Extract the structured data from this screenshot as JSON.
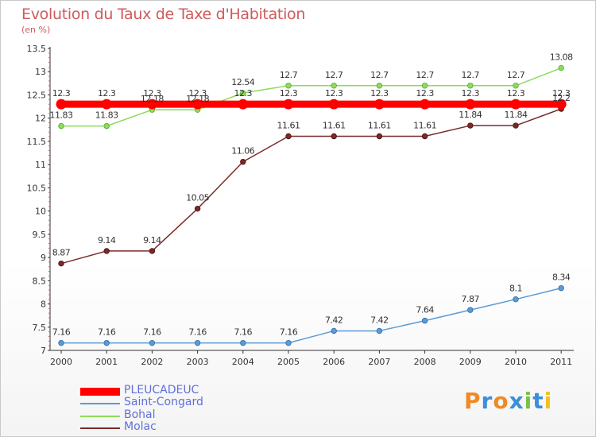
{
  "title": "Evolution du Taux de Taxe d'Habitation",
  "subtitle": "(en %)",
  "logo_text": "Proxiti",
  "chart_data": {
    "type": "line",
    "title": "Evolution du Taux de Taxe d'Habitation",
    "ylabel": "(en %)",
    "xlabel": "",
    "x": [
      "2000",
      "2001",
      "2002",
      "2003",
      "2004",
      "2005",
      "2006",
      "2007",
      "2008",
      "2009",
      "2010",
      "2011"
    ],
    "ylim": [
      7,
      13.5
    ],
    "yticks": [
      "7",
      "7.5",
      "8",
      "8.5",
      "9",
      "9.5",
      "10",
      "10.5",
      "11",
      "11.5",
      "12",
      "12.5",
      "13",
      "13.5"
    ],
    "legend_position": "bottom-left",
    "grid": false,
    "series": [
      {
        "name": "PLEUCADEUC",
        "color": "#ff0000",
        "values": [
          12.3,
          12.3,
          12.3,
          12.3,
          12.3,
          12.3,
          12.3,
          12.3,
          12.3,
          12.3,
          12.3,
          12.3
        ],
        "labels": [
          "12.3",
          "12.3",
          "12.3",
          "12.3",
          "12.3",
          "12.3",
          "12.3",
          "12.3",
          "12.3",
          "12.3",
          "12.3",
          "12.3"
        ]
      },
      {
        "name": "Saint-Congard",
        "color": "#5b9bd5",
        "values": [
          7.16,
          7.16,
          7.16,
          7.16,
          7.16,
          7.16,
          7.42,
          7.42,
          7.64,
          7.87,
          8.1,
          8.34
        ],
        "labels": [
          "7.16",
          "7.16",
          "7.16",
          "7.16",
          "7.16",
          "7.16",
          "7.42",
          "7.42",
          "7.64",
          "7.87",
          "8.1",
          "8.34"
        ]
      },
      {
        "name": "Bohal",
        "color": "#8ddc5a",
        "values": [
          11.83,
          11.83,
          12.18,
          12.18,
          12.54,
          12.7,
          12.7,
          12.7,
          12.7,
          12.7,
          12.7,
          13.08
        ],
        "labels": [
          "11.83",
          "11.83",
          "12.18",
          "12.18",
          "12.54",
          "12.7",
          "12.7",
          "12.7",
          "12.7",
          "12.7",
          "12.7",
          "13.08"
        ]
      },
      {
        "name": "Molac",
        "color": "#7a2a2a",
        "values": [
          8.87,
          9.14,
          9.14,
          10.05,
          11.06,
          11.61,
          11.61,
          11.61,
          11.61,
          11.84,
          11.84,
          12.2
        ],
        "labels": [
          "8.87",
          "9.14",
          "9.14",
          "10.05",
          "11.06",
          "11.61",
          "11.61",
          "11.61",
          "11.61",
          "11.84",
          "11.84",
          "12.2"
        ]
      }
    ]
  }
}
